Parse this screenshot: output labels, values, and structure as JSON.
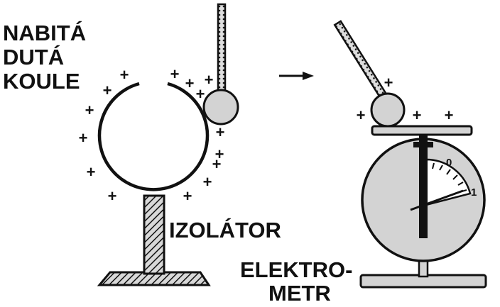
{
  "labels": {
    "sphere_line1": "NABITÁ",
    "sphere_line2": "DUTÁ",
    "sphere_line3": "KOULE",
    "insulator": "IZOLÁTOR",
    "electrometer_line1": "ELEKTRO-",
    "electrometer_line2": "METR"
  },
  "charge_symbol": "+",
  "scale": {
    "zero": "0",
    "one": "1"
  },
  "arrow": "→",
  "colors": {
    "ink": "#111111",
    "fill_gray": "#d3d3d3",
    "background": "#ffffff"
  }
}
